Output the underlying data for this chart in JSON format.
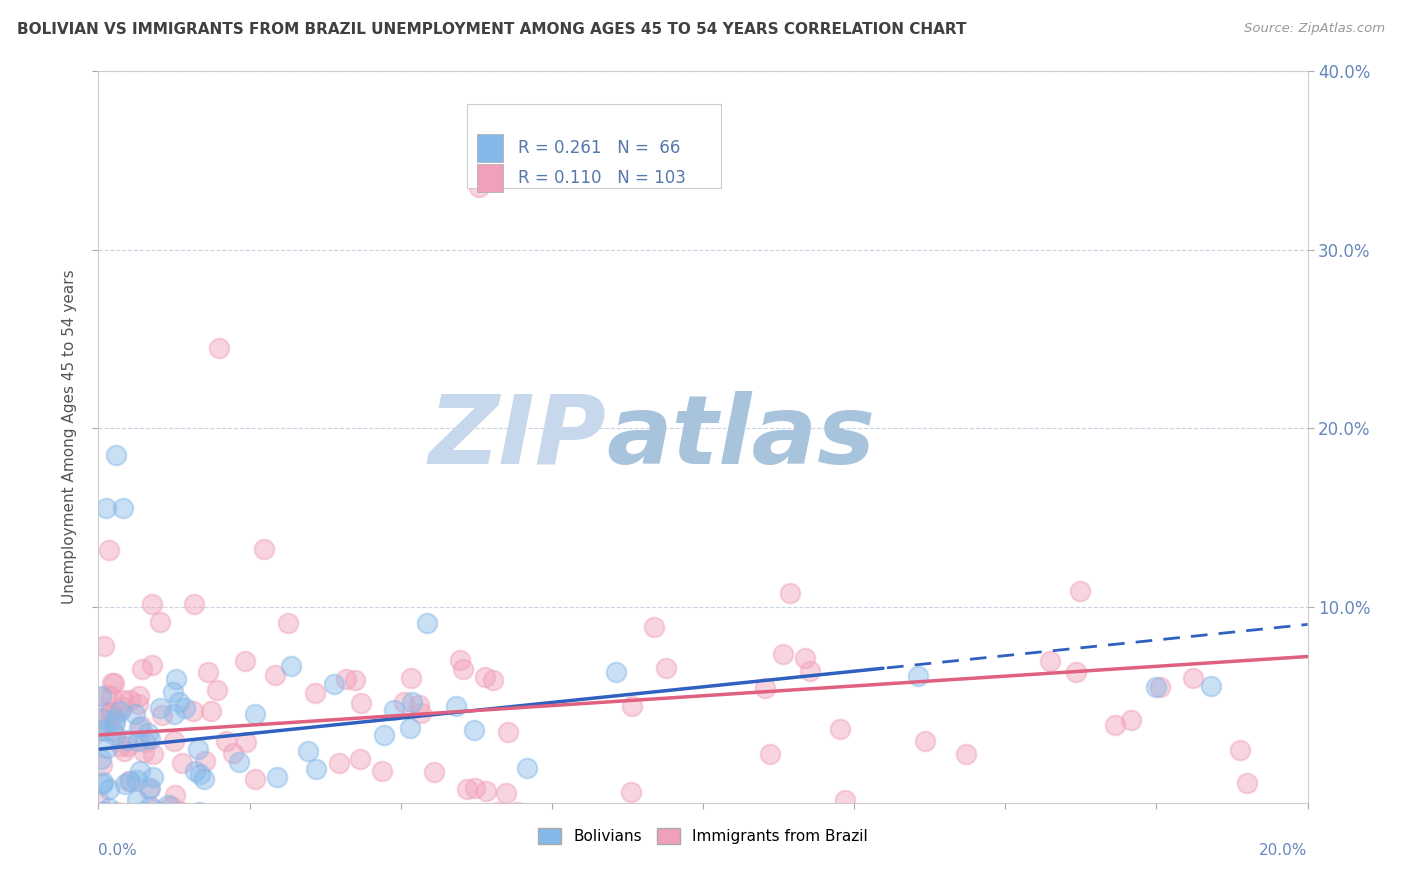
{
  "title": "BOLIVIAN VS IMMIGRANTS FROM BRAZIL UNEMPLOYMENT AMONG AGES 45 TO 54 YEARS CORRELATION CHART",
  "source": "Source: ZipAtlas.com",
  "ylabel": "Unemployment Among Ages 45 to 54 years",
  "xmin": 0.0,
  "xmax": 0.2,
  "ymin": -0.01,
  "ymax": 0.4,
  "bolivians_R": 0.261,
  "bolivians_N": 66,
  "brazil_R": 0.11,
  "brazil_N": 103,
  "blue_color": "#85b8e8",
  "pink_color": "#f0a0b8",
  "blue_line_color": "#3060c0",
  "pink_line_color": "#e06080",
  "watermark_color_zip": "#c5d5e8",
  "watermark_color_atlas": "#a8c8e0",
  "grid_color": "#c8d4e4",
  "title_color": "#404040",
  "axis_label_color": "#5577aa",
  "tick_label_color": "#6688bb"
}
